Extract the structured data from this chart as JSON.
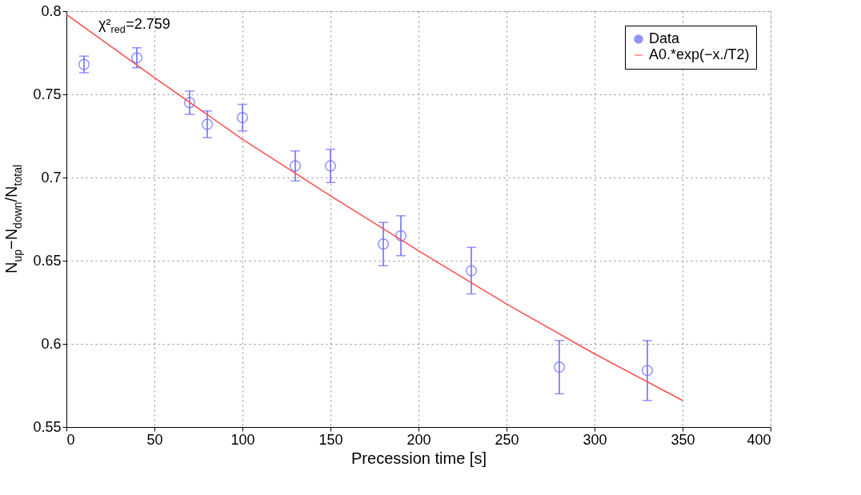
{
  "chart_data": {
    "type": "scatter",
    "xlabel": "Precession time [s]",
    "ylabel": "N$_{up}$−N$_{down}$/N$_{total}$",
    "annotations": [
      "χ²$_{red}$=2.759"
    ],
    "series": [
      {
        "name": "Data",
        "color": "#6666ff",
        "marker": "circle",
        "x": [
          10,
          40,
          70,
          80,
          100,
          130,
          150,
          180,
          190,
          230,
          280,
          330
        ],
        "values": [
          0.768,
          0.772,
          0.745,
          0.732,
          0.736,
          0.707,
          0.707,
          0.66,
          0.665,
          0.644,
          0.586,
          0.584
        ],
        "errors": [
          0.005,
          0.006,
          0.007,
          0.008,
          0.008,
          0.009,
          0.01,
          0.013,
          0.012,
          0.014,
          0.016,
          0.018
        ]
      },
      {
        "name": "A0.*exp(−x./T2)",
        "type": "line",
        "color": "#ff4d4d",
        "marker": "none",
        "x": [
          0,
          50,
          100,
          150,
          200,
          250,
          300,
          350
        ],
        "values": [
          0.798,
          0.76,
          0.723,
          0.689,
          0.656,
          0.624,
          0.594,
          0.566
        ]
      }
    ],
    "xlim": [
      0,
      400
    ],
    "xticks": [
      0,
      50,
      100,
      150,
      200,
      250,
      300,
      350,
      400
    ],
    "ylim": [
      0.55,
      0.8
    ],
    "yticks": [
      0.55,
      0.6,
      0.65,
      0.7,
      0.75,
      0.8
    ],
    "grid": true,
    "legend": "top right"
  }
}
